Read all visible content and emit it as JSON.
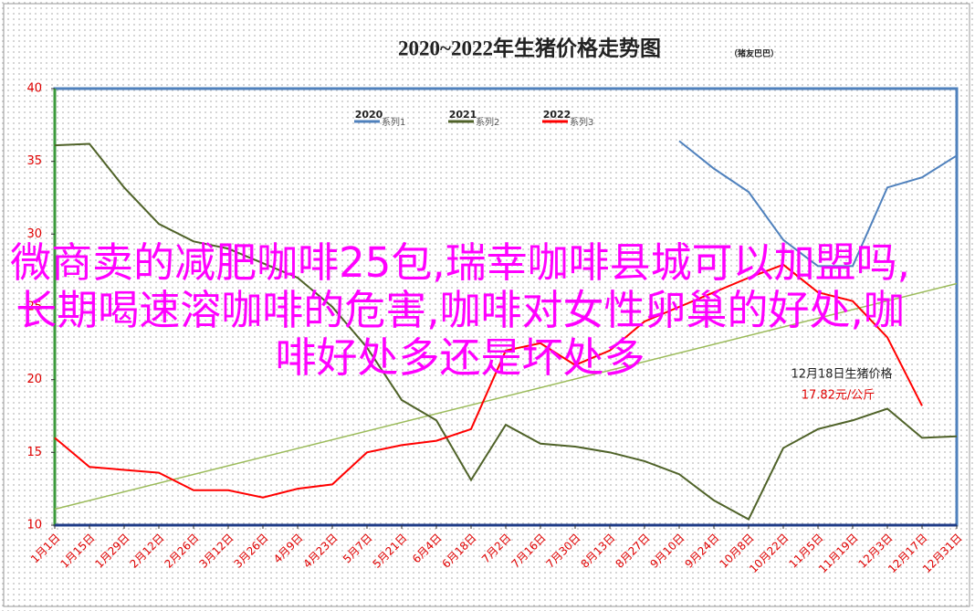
{
  "chart_data": {
    "type": "line",
    "title": "2020~2022年生猪价格走势图",
    "subtitle": "（猪友巴巴）",
    "categories": [
      "1月1日",
      "1月15日",
      "1月29日",
      "2月12日",
      "2月26日",
      "3月12日",
      "3月26日",
      "4月9日",
      "4月23日",
      "5月7日",
      "5月21日",
      "6月4日",
      "6月18日",
      "7月2日",
      "7月16日",
      "7月30日",
      "8月13日",
      "8月27日",
      "9月10日",
      "9月24日",
      "10月8日",
      "10月22日",
      "11月5日",
      "11月19日",
      "12月3日",
      "12月17日",
      "12月31日"
    ],
    "series": [
      {
        "name": "系列1",
        "year": "2020",
        "color": "#4f81bd",
        "values": [
          null,
          null,
          null,
          null,
          null,
          null,
          null,
          null,
          null,
          null,
          null,
          null,
          null,
          null,
          null,
          null,
          null,
          null,
          36.4,
          34.5,
          32.9,
          29.6,
          27.8,
          27.8,
          33.2,
          33.9,
          35.4
        ]
      },
      {
        "name": "系列2",
        "year": "2021",
        "color": "#4f6228",
        "values": [
          36.1,
          36.2,
          33.2,
          30.7,
          29.5,
          29,
          28,
          27,
          25,
          22.2,
          18.6,
          17.2,
          13.1,
          16.9,
          15.6,
          15.4,
          15,
          14.4,
          13.5,
          11.7,
          10.4,
          15.3,
          16.6,
          17.2,
          18,
          16,
          16.1
        ]
      },
      {
        "name": "系列3",
        "year": "2022",
        "color": "#ff0000",
        "values": [
          16,
          14,
          13.8,
          13.6,
          12.4,
          12.4,
          11.9,
          12.5,
          12.8,
          15,
          15.5,
          15.8,
          16.6,
          22,
          22.5,
          21,
          22,
          24,
          25,
          26,
          27,
          27.9,
          26,
          25.4,
          22.9,
          18.2,
          null
        ]
      }
    ],
    "trend": {
      "color": "#9bbb59",
      "values": [
        11.1,
        26.6
      ]
    },
    "ylim": [
      10,
      40
    ],
    "yticks": [
      10,
      15,
      20,
      25,
      30,
      35,
      40
    ],
    "annotation": {
      "title": "12月18日生猪价格",
      "value": "17.82元/公斤"
    }
  },
  "overlay": {
    "text": "微商卖的减肥咖啡25包,瑞幸咖啡县城可以加盟吗,长期喝速溶咖啡的危害,咖啡对女性卵巢的好处,咖啡好处多还是坏处多"
  }
}
